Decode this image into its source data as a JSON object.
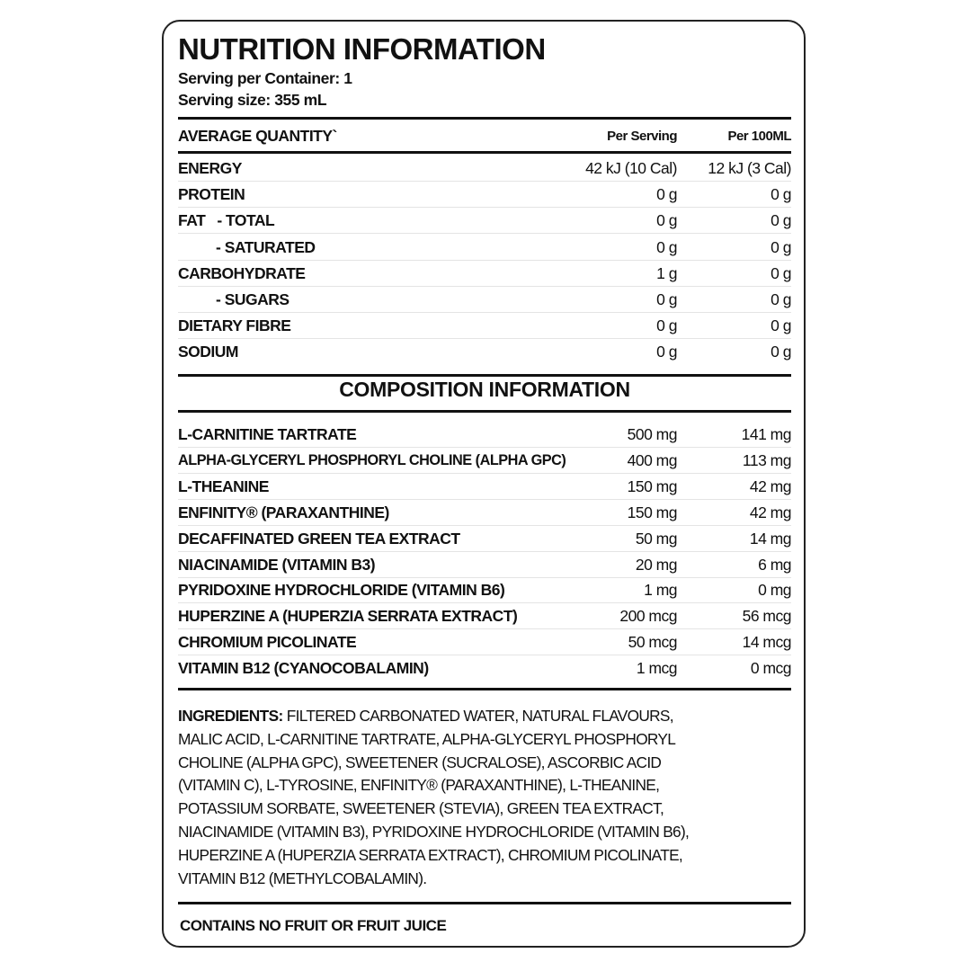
{
  "title": "NUTRITION INFORMATION",
  "serving_per_container": "Serving per Container: 1",
  "serving_size": "Serving size: 355 mL",
  "nutrition_header": {
    "label": "AVERAGE QUANTITY`",
    "per_serving": "Per Serving",
    "per_100ml": "Per 100ML"
  },
  "nutrition_rows": [
    {
      "label": "ENERGY",
      "per_serving": "42 kJ (10 Cal)",
      "per_100ml": "12 kJ (3 Cal)"
    },
    {
      "label": "PROTEIN",
      "per_serving": "0 g",
      "per_100ml": "0 g"
    },
    {
      "label": "FAT   - TOTAL",
      "per_serving": "0 g",
      "per_100ml": "0 g"
    },
    {
      "label": "- SATURATED",
      "per_serving": "0 g",
      "per_100ml": "0 g"
    },
    {
      "label": "CARBOHYDRATE",
      "per_serving": "1 g",
      "per_100ml": "0 g"
    },
    {
      "label": "- SUGARS",
      "per_serving": "0 g",
      "per_100ml": "0 g"
    },
    {
      "label": "DIETARY FIBRE",
      "per_serving": "0 g",
      "per_100ml": "0 g"
    },
    {
      "label": "SODIUM",
      "per_serving": "0 g",
      "per_100ml": "0 g"
    }
  ],
  "composition_title": "COMPOSITION INFORMATION",
  "composition_rows": [
    {
      "label": "L-CARNITINE TARTRATE",
      "per_serving": "500 mg",
      "per_100ml": "141 mg"
    },
    {
      "label": "ALPHA-GLYCERYL PHOSPHORYL CHOLINE (ALPHA GPC)",
      "per_serving": "400 mg",
      "per_100ml": "113 mg"
    },
    {
      "label": "L-THEANINE",
      "per_serving": "150 mg",
      "per_100ml": "42 mg"
    },
    {
      "label": "ENFINITY® (PARAXANTHINE)",
      "per_serving": "150 mg",
      "per_100ml": "42 mg"
    },
    {
      "label": "DECAFFINATED GREEN TEA EXTRACT",
      "per_serving": "50 mg",
      "per_100ml": "14 mg"
    },
    {
      "label": "NIACINAMIDE (VITAMIN B3)",
      "per_serving": "20 mg",
      "per_100ml": "6 mg"
    },
    {
      "label": "PYRIDOXINE HYDROCHLORIDE (VITAMIN B6)",
      "per_serving": "1 mg",
      "per_100ml": "0 mg"
    },
    {
      "label": "HUPERZINE A (HUPERZIA SERRATA EXTRACT)",
      "per_serving": "200 mcg",
      "per_100ml": "56 mcg"
    },
    {
      "label": "CHROMIUM PICOLINATE",
      "per_serving": "50 mcg",
      "per_100ml": "14 mcg"
    },
    {
      "label": "VITAMIN B12 (CYANOCOBALAMIN)",
      "per_serving": "1 mcg",
      "per_100ml": "0 mcg"
    }
  ],
  "ingredients": {
    "label": "INGREDIENTS:",
    "lines": [
      " FILTERED CARBONATED WATER, NATURAL FLAVOURS,",
      "MALIC ACID,  L-CARNITINE TARTRATE, ALPHA-GLYCERYL PHOSPHORYL",
      "CHOLINE (ALPHA GPC), SWEETENER (SUCRALOSE), ASCORBIC ACID",
      "(VITAMIN C), L-TYROSINE, ENFINITY® (PARAXANTHINE), L-THEANINE,",
      "POTASSIUM SORBATE, SWEETENER (STEVIA), GREEN TEA EXTRACT,",
      "NIACINAMIDE (VITAMIN B3), PYRIDOXINE HYDROCHLORIDE (VITAMIN B6),",
      "HUPERZINE A (HUPERZIA SERRATA EXTRACT), CHROMIUM PICOLINATE,",
      "VITAMIN B12 (METHYLCOBALAMIN)."
    ]
  },
  "footer": "CONTAINS NO FRUIT OR FRUIT JUICE"
}
